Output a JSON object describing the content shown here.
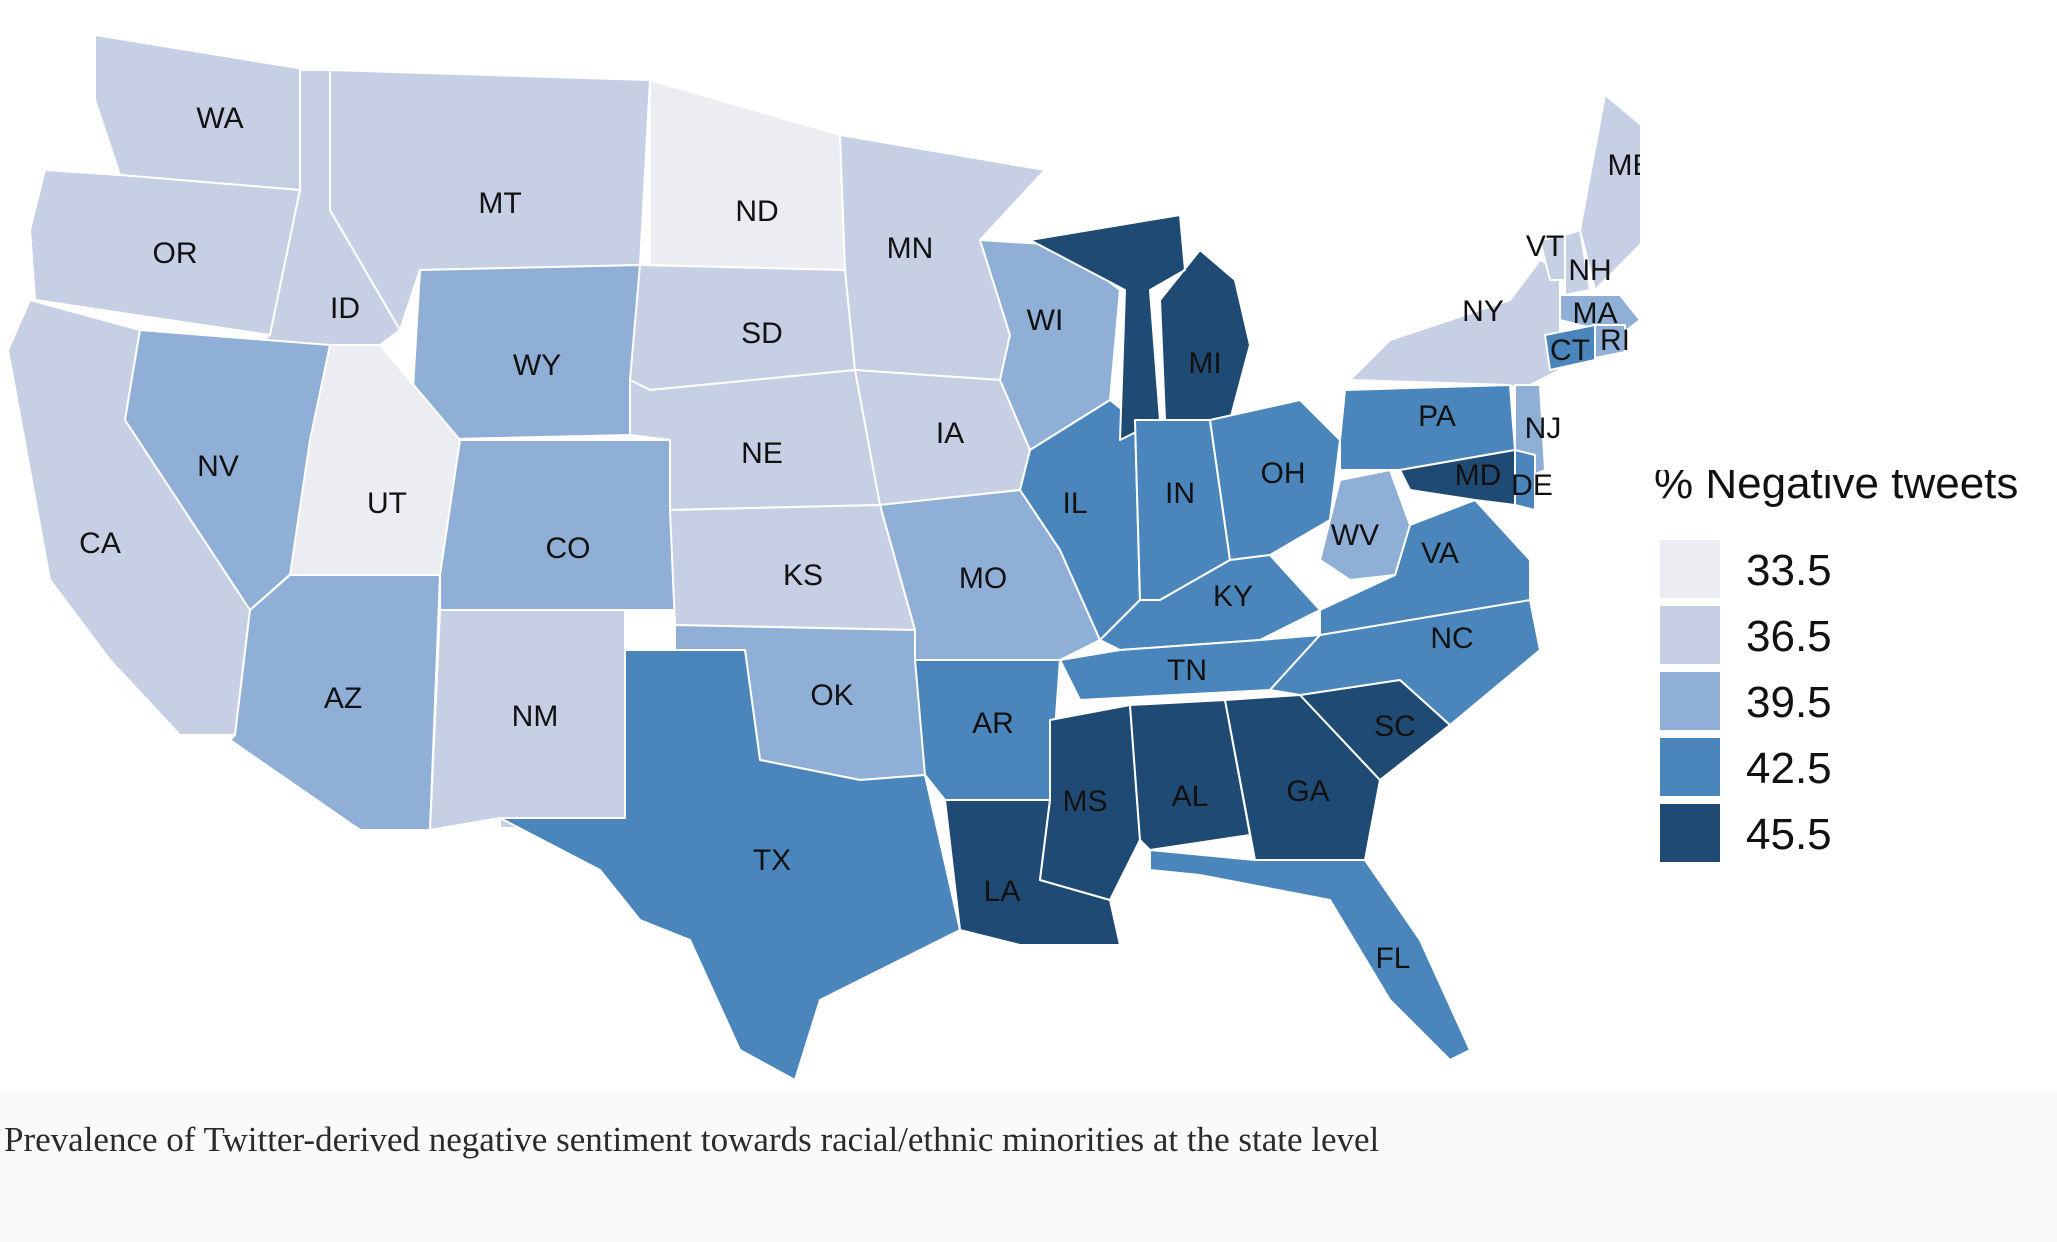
{
  "map_title": "",
  "legend": {
    "title": "% Negative tweets",
    "items": [
      {
        "value": "33.5",
        "color": "#ececf3"
      },
      {
        "value": "36.5",
        "color": "#c7cfe5"
      },
      {
        "value": "39.5",
        "color": "#8fafd6"
      },
      {
        "value": "42.5",
        "color": "#4a86bc"
      },
      {
        "value": "45.5",
        "color": "#1f4a74"
      }
    ]
  },
  "states": [
    {
      "abbr": "WA",
      "value": 36.5
    },
    {
      "abbr": "OR",
      "value": 36.5
    },
    {
      "abbr": "CA",
      "value": 36.5
    },
    {
      "abbr": "ID",
      "value": 37.5
    },
    {
      "abbr": "NV",
      "value": 39.5
    },
    {
      "abbr": "MT",
      "value": 35.5
    },
    {
      "abbr": "WY",
      "value": 38.5
    },
    {
      "abbr": "UT",
      "value": 33.5
    },
    {
      "abbr": "AZ",
      "value": 38.5
    },
    {
      "abbr": "CO",
      "value": 38.5
    },
    {
      "abbr": "NM",
      "value": 35.5
    },
    {
      "abbr": "ND",
      "value": 34.5
    },
    {
      "abbr": "SD",
      "value": 36.5
    },
    {
      "abbr": "NE",
      "value": 37.0
    },
    {
      "abbr": "KS",
      "value": 37.5
    },
    {
      "abbr": "OK",
      "value": 38.5
    },
    {
      "abbr": "TX",
      "value": 42.5
    },
    {
      "abbr": "MN",
      "value": 36.5
    },
    {
      "abbr": "IA",
      "value": 35.5
    },
    {
      "abbr": "MO",
      "value": 39.0
    },
    {
      "abbr": "AR",
      "value": 44.0
    },
    {
      "abbr": "LA",
      "value": 45.5
    },
    {
      "abbr": "WI",
      "value": 41.0
    },
    {
      "abbr": "IL",
      "value": 42.0
    },
    {
      "abbr": "MI",
      "value": 45.0
    },
    {
      "abbr": "IN",
      "value": 43.0
    },
    {
      "abbr": "OH",
      "value": 44.0
    },
    {
      "abbr": "KY",
      "value": 42.5
    },
    {
      "abbr": "TN",
      "value": 43.0
    },
    {
      "abbr": "MS",
      "value": 45.5
    },
    {
      "abbr": "AL",
      "value": 45.5
    },
    {
      "abbr": "GA",
      "value": 44.5
    },
    {
      "abbr": "FL",
      "value": 41.5
    },
    {
      "abbr": "SC",
      "value": 44.5
    },
    {
      "abbr": "NC",
      "value": 44.0
    },
    {
      "abbr": "VA",
      "value": 42.0
    },
    {
      "abbr": "WV",
      "value": 38.5
    },
    {
      "abbr": "PA",
      "value": 43.0
    },
    {
      "abbr": "NY",
      "value": 36.5
    },
    {
      "abbr": "VT",
      "value": 35.5
    },
    {
      "abbr": "NH",
      "value": 37.0
    },
    {
      "abbr": "ME",
      "value": 37.5
    },
    {
      "abbr": "MA",
      "value": 38.5
    },
    {
      "abbr": "CT",
      "value": 42.0
    },
    {
      "abbr": "RI",
      "value": 39.0
    },
    {
      "abbr": "NJ",
      "value": 41.0
    },
    {
      "abbr": "DE",
      "value": 44.0
    },
    {
      "abbr": "MD",
      "value": 45.0
    }
  ],
  "caption": "Prevalence of Twitter-derived negative sentiment towards racial/ethnic minorities at the state level"
}
